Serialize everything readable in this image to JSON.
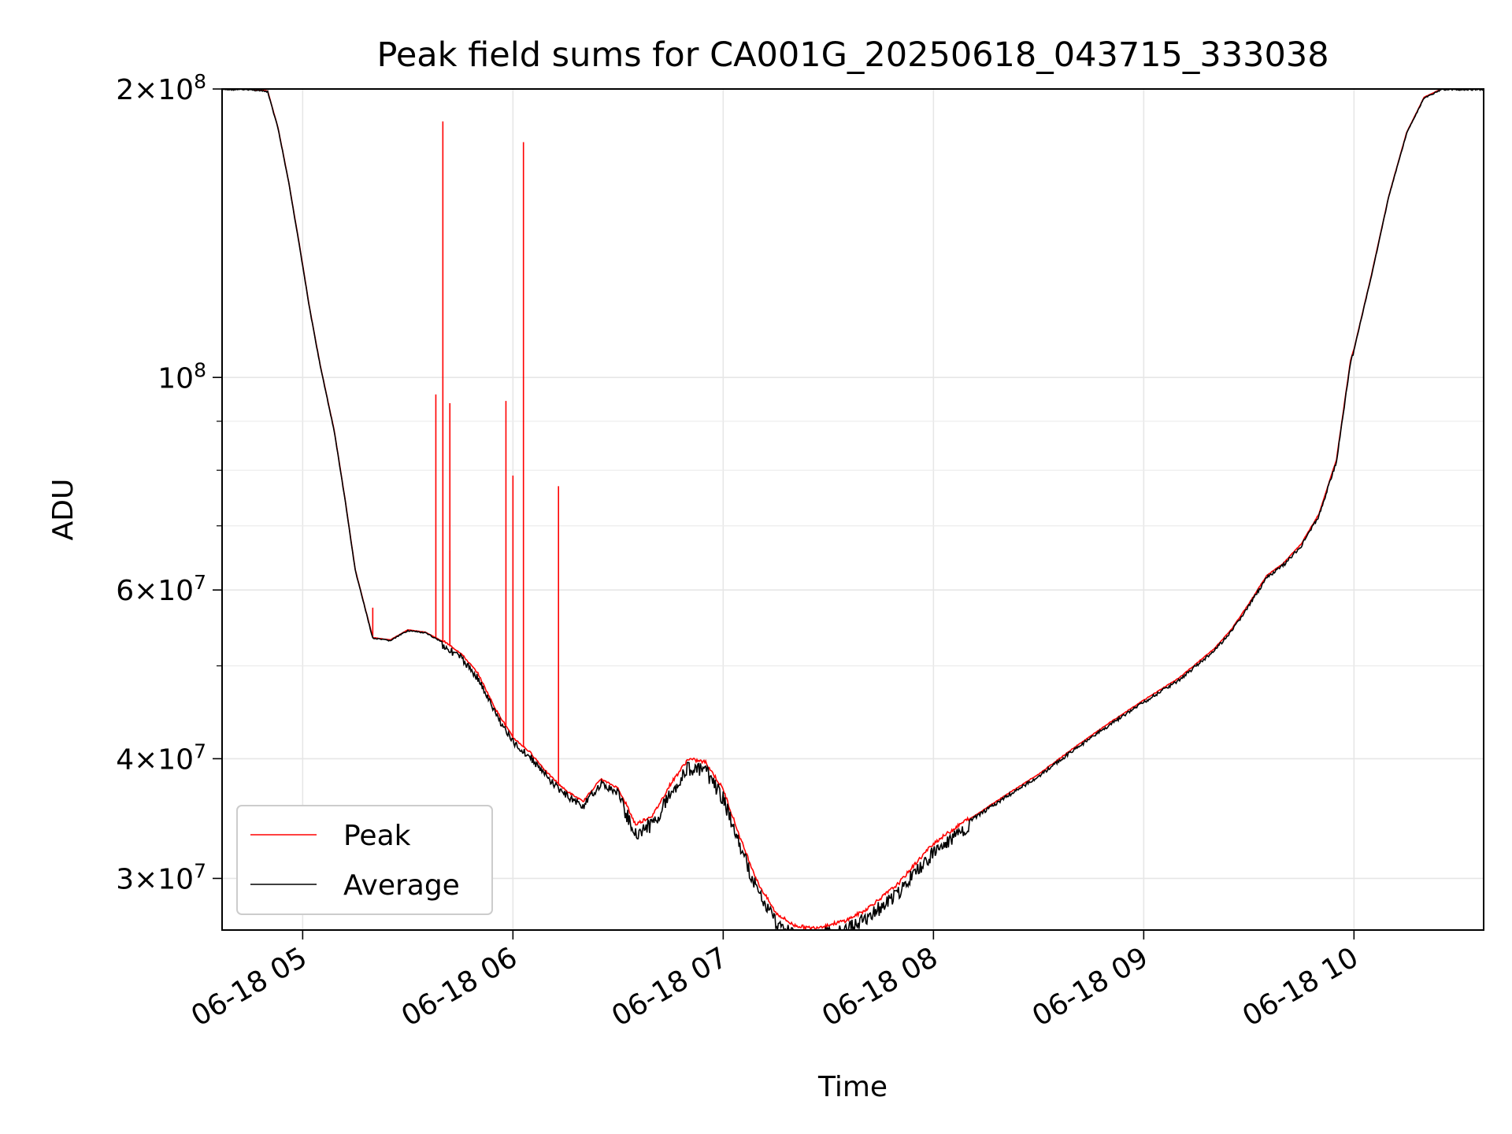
{
  "chart_data": {
    "type": "line",
    "title": "Peak field sums for CA001G_20250618_043715_333038",
    "xlabel": "Time",
    "ylabel": "ADU",
    "yscale": "log",
    "xlim": [
      "06-18 04:37",
      "06-18 10:37"
    ],
    "ylim": [
      26500000,
      200000000
    ],
    "grid": true,
    "legend_position": "lower-left",
    "x_ticks": [
      "06-18 05",
      "06-18 06",
      "06-18 07",
      "06-18 08",
      "06-18 09",
      "06-18 10"
    ],
    "y_ticks": [
      {
        "value": 30000000,
        "mant": "3",
        "exp": "7"
      },
      {
        "value": 40000000,
        "mant": "4",
        "exp": "7"
      },
      {
        "value": 60000000,
        "mant": "6",
        "exp": "7"
      },
      {
        "value": 100000000,
        "mant": "",
        "exp": "8"
      },
      {
        "value": 200000000,
        "mant": "2",
        "exp": "8"
      }
    ],
    "y_minor_ticks": [
      50000000,
      70000000,
      80000000,
      90000000
    ],
    "baseline": {
      "x": [
        "04:37",
        "04:45",
        "04:50",
        "04:53",
        "04:56",
        "04:59",
        "05:02",
        "05:05",
        "05:09",
        "05:12",
        "05:15",
        "05:20",
        "05:25",
        "05:30",
        "05:35",
        "05:40",
        "05:45",
        "05:50",
        "05:55",
        "06:00",
        "06:05",
        "06:10",
        "06:15",
        "06:20",
        "06:25",
        "06:30",
        "06:35",
        "06:40",
        "06:45",
        "06:50",
        "06:55",
        "07:00",
        "07:05",
        "07:10",
        "07:15",
        "07:20",
        "07:25",
        "07:30",
        "07:35",
        "07:40",
        "07:45",
        "07:50",
        "07:55",
        "08:00",
        "08:10",
        "08:20",
        "08:30",
        "08:40",
        "08:50",
        "09:00",
        "09:10",
        "09:20",
        "09:25",
        "09:30",
        "09:35",
        "09:40",
        "09:45",
        "09:50",
        "09:55",
        "09:59",
        "10:00",
        "10:05",
        "10:10",
        "10:15",
        "10:20",
        "10:25",
        "10:30",
        "10:37"
      ],
      "y": [
        200000000,
        200000000,
        199000000,
        182000000,
        160000000,
        138000000,
        118000000,
        103000000,
        88000000,
        75000000,
        63000000,
        53500000,
        53200000,
        54500000,
        54200000,
        53000000,
        51500000,
        49000000,
        45000000,
        42000000,
        40500000,
        38500000,
        37000000,
        36000000,
        38000000,
        37200000,
        34000000,
        34800000,
        37500000,
        39800000,
        39500000,
        37000000,
        32800000,
        29500000,
        27500000,
        26700000,
        26500000,
        26700000,
        27000000,
        27600000,
        28500000,
        29500000,
        31000000,
        32500000,
        34500000,
        36500000,
        38500000,
        41000000,
        43500000,
        46000000,
        48500000,
        52000000,
        54500000,
        58000000,
        62000000,
        64000000,
        67000000,
        72000000,
        82000000,
        104000000,
        107000000,
        128000000,
        155000000,
        180000000,
        196000000,
        200000000,
        200000000,
        200000000
      ]
    },
    "series": [
      {
        "name": "Peak",
        "color": "#ff0000",
        "spikes": [
          {
            "x": "05:20",
            "y": 57500000
          },
          {
            "x": "05:38",
            "y": 96000000
          },
          {
            "x": "05:40",
            "y": 185000000
          },
          {
            "x": "05:42",
            "y": 94000000
          },
          {
            "x": "05:42",
            "y": 66000000
          },
          {
            "x": "05:58",
            "y": 94500000
          },
          {
            "x": "06:00",
            "y": 79000000
          },
          {
            "x": "06:03",
            "y": 176000000
          },
          {
            "x": "06:13",
            "y": 77000000
          }
        ]
      },
      {
        "name": "Average",
        "color": "#000000"
      }
    ]
  }
}
